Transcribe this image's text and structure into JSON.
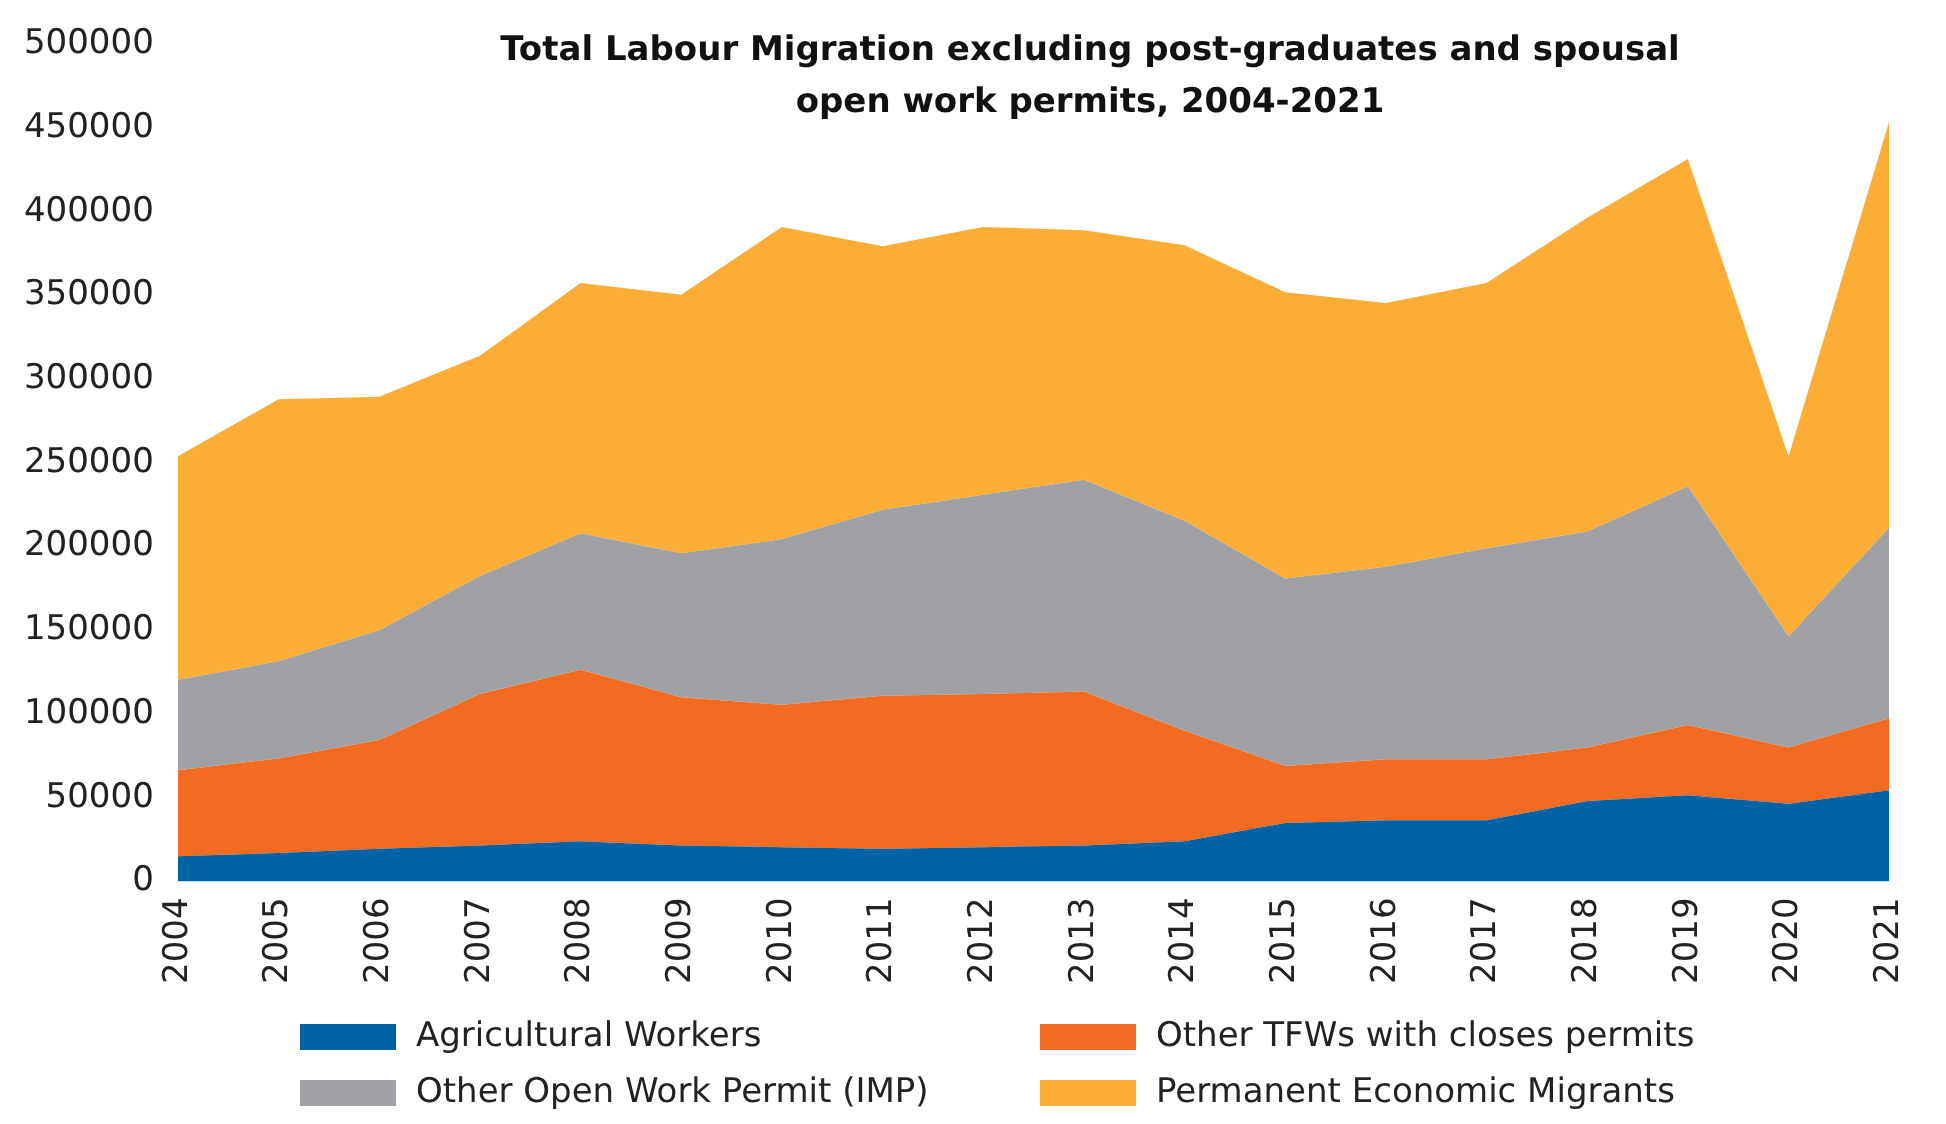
{
  "chart_data": {
    "type": "area",
    "title": "Total Labour Migration excluding post-graduates and spousal open work permits, 2004-2021",
    "categories": [
      "2004",
      "2005",
      "2006",
      "2007",
      "2008",
      "2009",
      "2010",
      "2011",
      "2012",
      "2013",
      "2014",
      "2015",
      "2016",
      "2017",
      "2018",
      "2019",
      "2020",
      "2021"
    ],
    "stacked": true,
    "ylim": [
      0,
      500000
    ],
    "yticks": [
      0,
      50000,
      100000,
      150000,
      200000,
      250000,
      300000,
      350000,
      400000,
      450000,
      500000
    ],
    "legend": "bottom",
    "series": [
      {
        "name": "Agricultural Workers",
        "color": "#0063a6",
        "values": [
          15000,
          17000,
          19500,
          21500,
          24000,
          21500,
          20500,
          19500,
          20500,
          21500,
          24000,
          35000,
          36500,
          36500,
          48000,
          51500,
          46500,
          54500
        ]
      },
      {
        "name": "Other TFWs with closes permits",
        "color": "#f26b21",
        "values": [
          51500,
          56500,
          65000,
          90500,
          102500,
          88500,
          85000,
          91500,
          91500,
          92000,
          66000,
          34000,
          36500,
          36500,
          32000,
          42000,
          33500,
          43000
        ]
      },
      {
        "name": "Other Open Work Permit (IMP)",
        "color": "#a0a1a4",
        "values": [
          54000,
          58000,
          65500,
          70500,
          81500,
          86000,
          99000,
          111000,
          119000,
          126500,
          125500,
          112000,
          115000,
          126000,
          129000,
          142500,
          66500,
          114000
        ]
      },
      {
        "name": "Permanent Economic Migrants",
        "color": "#fbad35",
        "values": [
          133500,
          156500,
          139500,
          131500,
          149500,
          154500,
          186500,
          157500,
          160000,
          149000,
          164500,
          171000,
          157500,
          158500,
          187500,
          195500,
          107500,
          242500
        ]
      }
    ]
  }
}
